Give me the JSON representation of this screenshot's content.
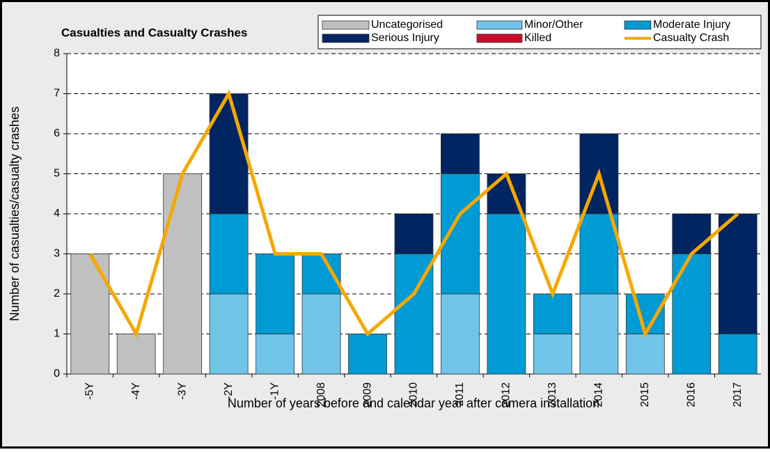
{
  "chart_data": {
    "type": "stacked_bar",
    "title": "Casualties and Casualty Crashes",
    "x_label": "Number of years before and calendar year after camera installation",
    "y_label": "Number of casualties/casualty crashes",
    "categories": [
      "-5Y",
      "-4Y",
      "-3Y",
      "-2Y",
      "-1Y",
      "2008",
      "2009",
      "2010",
      "2011",
      "2012",
      "2013",
      "2014",
      "2015",
      "2016",
      "2017"
    ],
    "series": [
      {
        "name": "Uncategorised",
        "color": "#c0c0c0",
        "values": [
          3,
          1,
          5,
          0,
          0,
          0,
          0,
          0,
          0,
          0,
          0,
          0,
          0,
          0,
          0
        ]
      },
      {
        "name": "Minor/Other",
        "color": "#70c4e8",
        "values": [
          0,
          0,
          0,
          2,
          1,
          2,
          0,
          0,
          2,
          0,
          1,
          2,
          1,
          0,
          0
        ]
      },
      {
        "name": "Moderate Injury",
        "color": "#009ad4",
        "values": [
          0,
          0,
          0,
          2,
          2,
          1,
          1,
          3,
          3,
          4,
          1,
          2,
          1,
          3,
          1
        ]
      },
      {
        "name": "Serious Injury",
        "color": "#002561",
        "values": [
          0,
          0,
          0,
          3,
          0,
          0,
          0,
          1,
          1,
          1,
          0,
          2,
          0,
          1,
          3
        ]
      },
      {
        "name": "Killed",
        "color": "#c8102e",
        "values": [
          0,
          0,
          0,
          0,
          0,
          0,
          0,
          0,
          0,
          0,
          0,
          0,
          0,
          0,
          0
        ]
      },
      {
        "name": "Casualty Crash",
        "color": "#f5a800",
        "type": "line",
        "values": [
          3,
          1,
          5,
          7,
          3,
          3,
          1,
          2,
          4,
          5,
          2,
          5,
          1,
          3,
          4
        ]
      }
    ],
    "ylim": [
      0,
      8
    ],
    "yticks": [
      0,
      1,
      2,
      3,
      4,
      5,
      6,
      7,
      8
    ],
    "grid": true
  }
}
